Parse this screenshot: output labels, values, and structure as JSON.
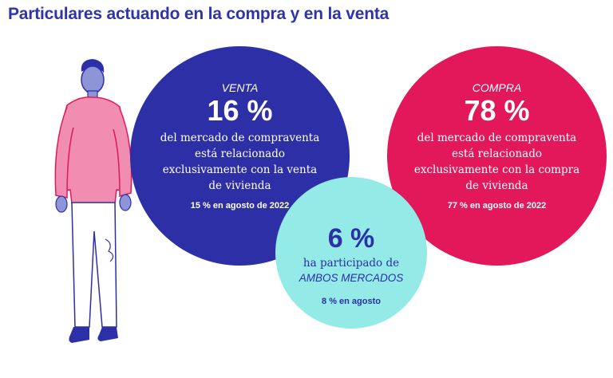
{
  "title": "Particulares actuando en la compra y en la venta",
  "colors": {
    "venta": "#2c2fa6",
    "compra": "#e2185a",
    "ambos": "#93eae6",
    "title": "#2f35a8"
  },
  "venta": {
    "label": "VENTA",
    "value": "16 %",
    "desc_lines": [
      "del mercado de compraventa",
      "está relacionado",
      "exclusivamente con la venta",
      "de vivienda"
    ],
    "previous": "15 % en agosto de 2022"
  },
  "compra": {
    "label": "COMPRA",
    "value": "78 %",
    "desc_lines": [
      "del mercado de compraventa",
      "está relacionado",
      "exclusivamente con la compra",
      "de vivienda"
    ],
    "previous": "77 % en agosto de 2022"
  },
  "ambos": {
    "value": "6 %",
    "desc_line1": "ha participado de",
    "desc_line2": "AMBOS MERCADOS",
    "previous": "8 % en agosto"
  },
  "figure_icon": "standing-person-illustration"
}
